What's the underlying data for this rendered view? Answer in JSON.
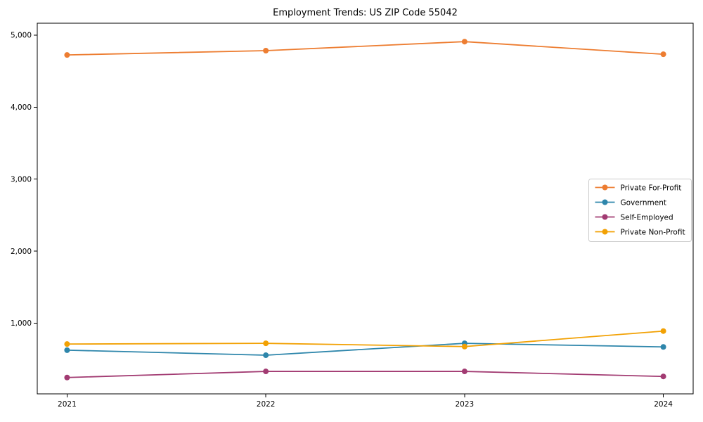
{
  "chart_data": {
    "type": "line",
    "title": "Employment Trends: US ZIP Code 55042",
    "xlabel": "",
    "ylabel": "",
    "categories": [
      2021,
      2022,
      2023,
      2024
    ],
    "x_tick_labels": [
      "2021",
      "2022",
      "2023",
      "2024"
    ],
    "y_ticks": [
      1000,
      2000,
      3000,
      4000,
      5000
    ],
    "y_tick_labels": [
      "1,000",
      "2,000",
      "3,000",
      "4,000",
      "5,000"
    ],
    "xlim": [
      2020.85,
      2024.15
    ],
    "ylim": [
      18,
      5166
    ],
    "grid": false,
    "legend_position": "center-right",
    "series": [
      {
        "name": "Private For-Profit",
        "color": "#ED7D31",
        "marker": "circle",
        "values": [
          4725,
          4785,
          4910,
          4735
        ]
      },
      {
        "name": "Government",
        "color": "#2E86AB",
        "marker": "circle",
        "values": [
          625,
          555,
          720,
          670
        ]
      },
      {
        "name": "Self-Employed",
        "color": "#A23B72",
        "marker": "circle",
        "values": [
          245,
          330,
          330,
          260
        ]
      },
      {
        "name": "Private Non-Profit",
        "color": "#F2A104",
        "marker": "circle",
        "values": [
          710,
          720,
          675,
          890
        ]
      }
    ],
    "colors": {
      "axis": "#000000",
      "tick_text": "#000000",
      "legend_border": "#cccccc",
      "legend_background": "#ffffff",
      "plot_background": "#ffffff"
    }
  }
}
